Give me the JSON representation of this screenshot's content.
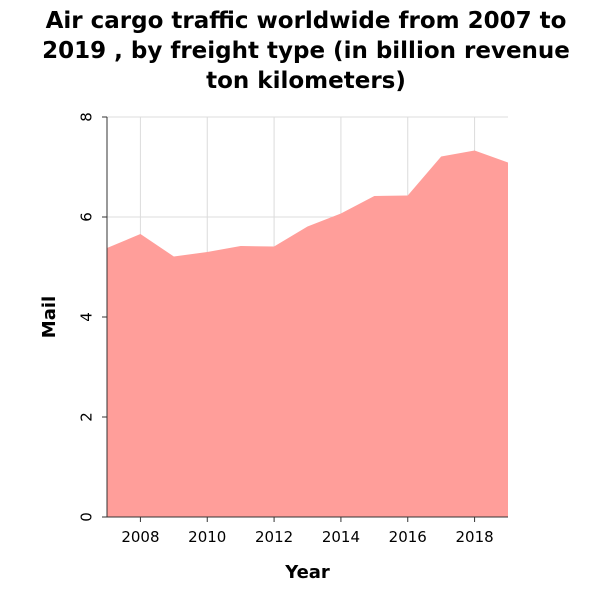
{
  "chart_data": {
    "type": "area",
    "title_lines": [
      "Air cargo traffic worldwide from 2007 to",
      "2019 , by freight type (in billion revenue",
      "ton kilometers)"
    ],
    "xlabel": "Year",
    "ylabel": "Mail",
    "x": [
      2007,
      2008,
      2009,
      2010,
      2011,
      2012,
      2013,
      2014,
      2015,
      2016,
      2017,
      2018,
      2019
    ],
    "values": [
      5.38,
      5.66,
      5.21,
      5.3,
      5.42,
      5.41,
      5.81,
      6.07,
      6.42,
      6.43,
      7.21,
      7.33,
      7.09
    ],
    "xlim": [
      2007,
      2019
    ],
    "ylim": [
      0,
      8
    ],
    "xticks": [
      2008,
      2010,
      2012,
      2014,
      2016,
      2018
    ],
    "yticks": [
      0,
      2,
      4,
      6,
      8
    ],
    "fill_color": "#ff9e9a",
    "grid": true
  }
}
